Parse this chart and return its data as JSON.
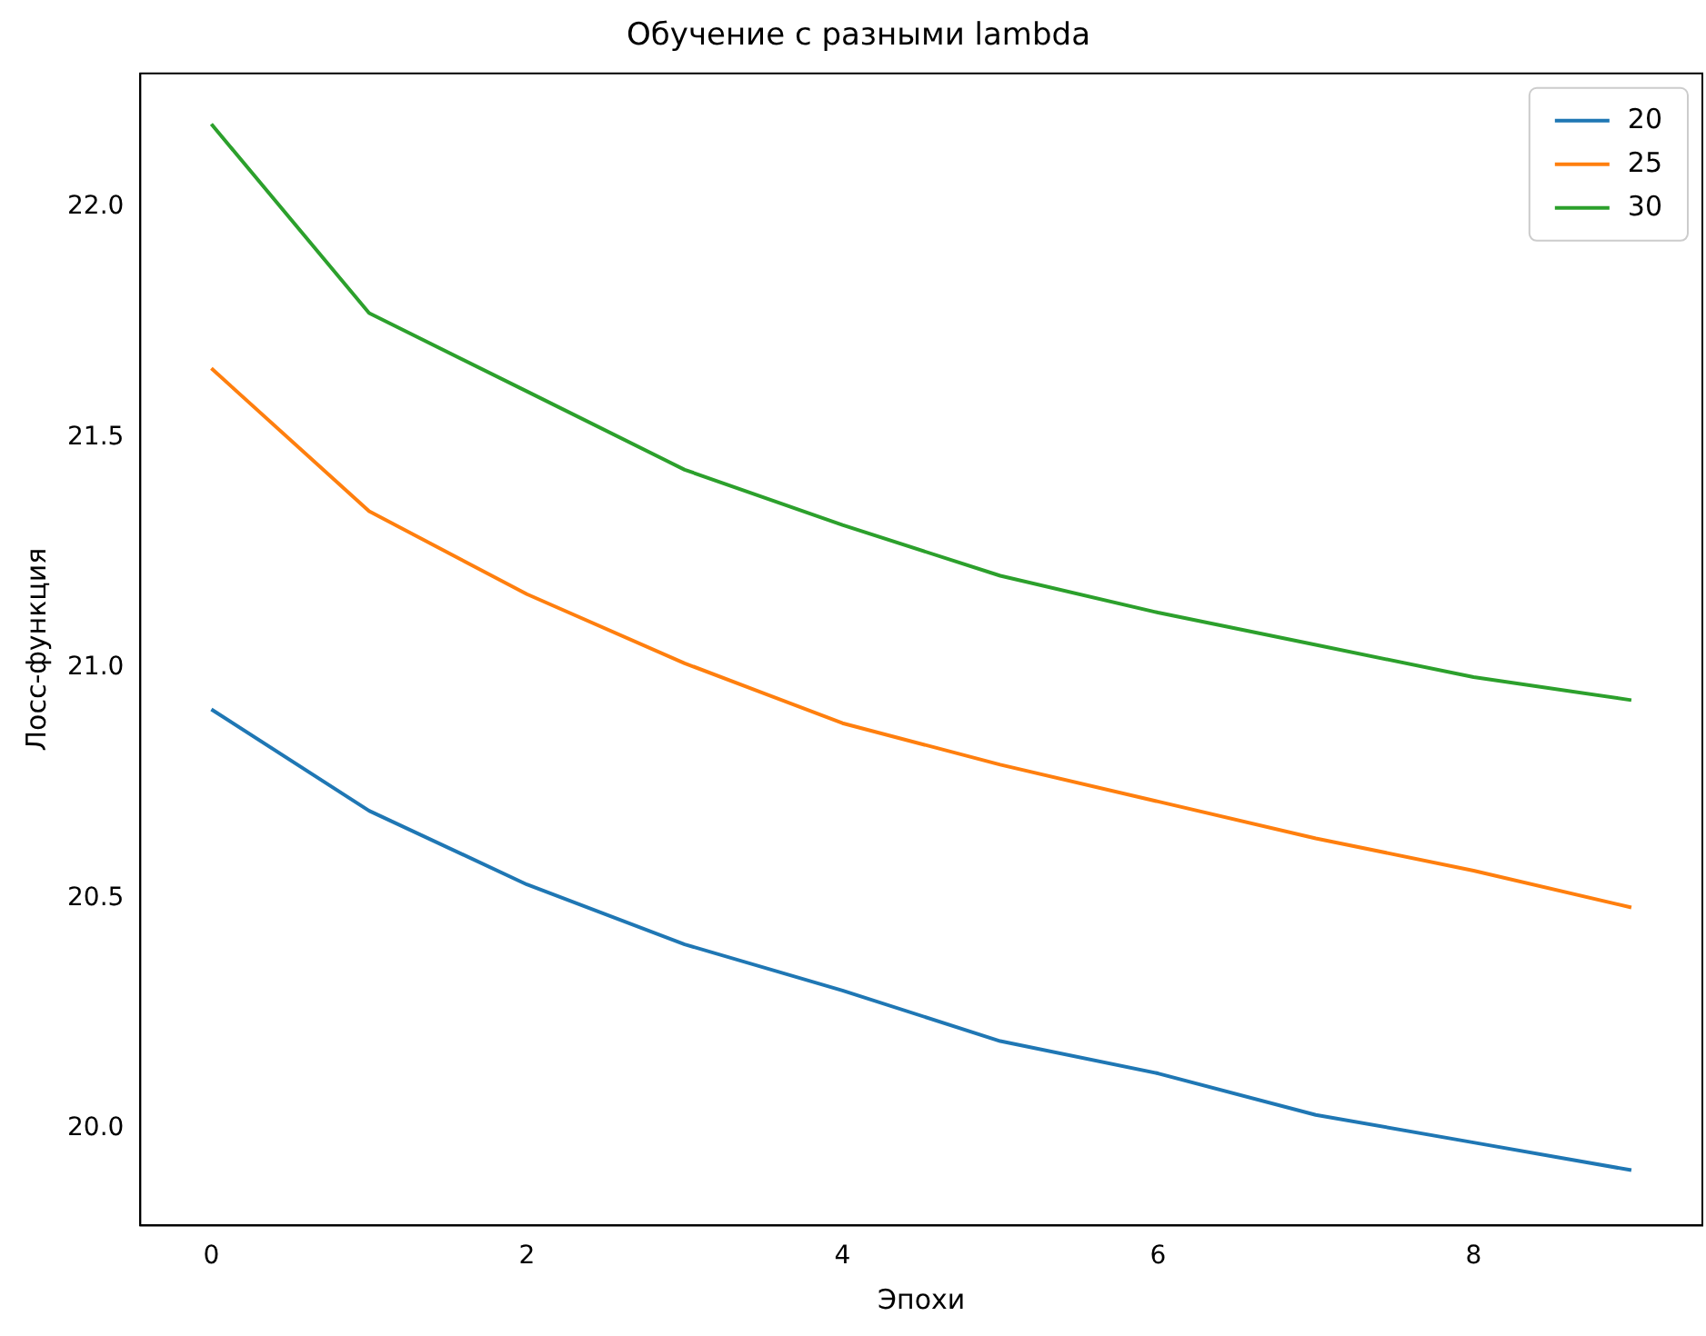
{
  "chart_data": {
    "type": "line",
    "title": "Обучение с разными lambda",
    "xlabel": "Эпохи",
    "ylabel": "Лосс-функция",
    "x": [
      0,
      1,
      2,
      3,
      4,
      5,
      6,
      7,
      8,
      9
    ],
    "series": [
      {
        "name": "20",
        "color": "#1f77b4",
        "values": [
          20.91,
          20.69,
          20.53,
          20.4,
          20.3,
          20.19,
          20.12,
          20.03,
          19.97,
          19.91
        ]
      },
      {
        "name": "25",
        "color": "#ff7f0e",
        "values": [
          21.65,
          21.34,
          21.16,
          21.01,
          20.88,
          20.79,
          20.71,
          20.63,
          20.56,
          20.48
        ]
      },
      {
        "name": "30",
        "color": "#2ca02c",
        "values": [
          22.18,
          21.77,
          21.6,
          21.43,
          21.31,
          21.2,
          21.12,
          21.05,
          20.98,
          20.93
        ]
      }
    ],
    "xlim": [
      -0.45,
      9.45
    ],
    "xticks": [
      0,
      2,
      4,
      6,
      8
    ],
    "ylim": [
      19.79,
      22.29
    ],
    "yticks": [
      {
        "value": 20,
        "label": "20.0"
      },
      {
        "value": 20.5,
        "label": "20.5"
      },
      {
        "value": 21,
        "label": "21.0"
      },
      {
        "value": 21.5,
        "label": "21.5"
      },
      {
        "value": 22,
        "label": "22.0"
      }
    ],
    "grid": false,
    "legend": "top right",
    "marker": "none",
    "line_style": "solid"
  }
}
